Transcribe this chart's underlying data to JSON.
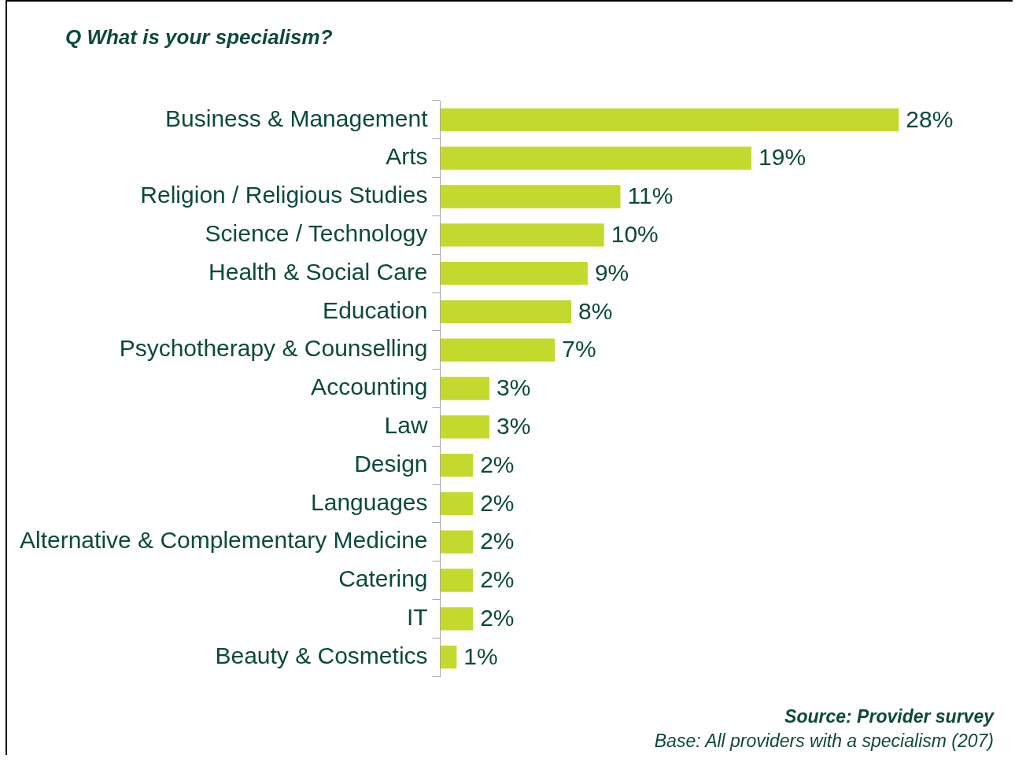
{
  "chart_data": {
    "type": "bar",
    "orientation": "horizontal",
    "title": "Q What is your specialism?",
    "categories": [
      "Business & Management",
      "Arts",
      "Religion / Religious Studies",
      "Science / Technology",
      "Health & Social Care",
      "Education",
      "Psychotherapy & Counselling",
      "Accounting",
      "Law",
      "Design",
      "Languages",
      "Alternative & Complementary Medicine",
      "Catering",
      "IT",
      "Beauty & Cosmetics"
    ],
    "values": [
      28,
      19,
      11,
      10,
      9,
      8,
      7,
      3,
      3,
      2,
      2,
      2,
      2,
      2,
      1
    ],
    "value_labels": [
      "28%",
      "19%",
      "11%",
      "10%",
      "9%",
      "8%",
      "7%",
      "3%",
      "3%",
      "2%",
      "2%",
      "2%",
      "2%",
      "2%",
      "1%"
    ],
    "color": "#c4d92e",
    "annotations": [
      "Source: Provider survey",
      "Base: All providers with a specialism (207)"
    ]
  }
}
